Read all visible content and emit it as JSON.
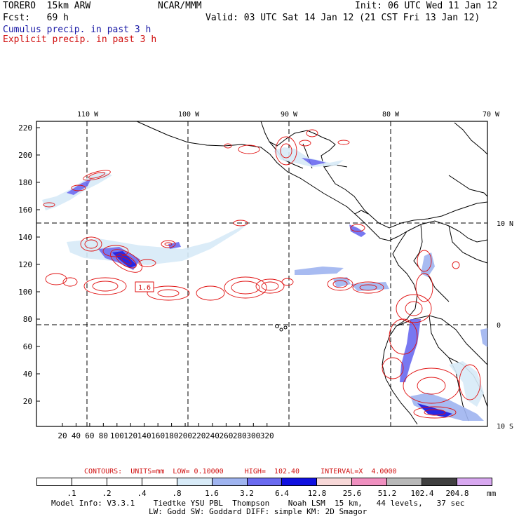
{
  "header": {
    "model": "TORERO  15km ARW",
    "institution": "NCAR/MMM",
    "init": "Init: 06 UTC Wed 11 Jan 12",
    "fcst": "Fcst:   69 h",
    "valid": "Valid: 03 UTC Sat 14 Jan 12 (21 CST Fri 13 Jan 12)",
    "field1": "Cumulus precip. in past 3 h",
    "field2": "Explicit precip. in past 3 h"
  },
  "axes": {
    "lon_labels": [
      "110 W",
      "100 W",
      "90 W",
      "80 W",
      "70 W"
    ],
    "lat_labels": [
      "10 N",
      "0",
      "10 S"
    ],
    "y_ticks": [
      "220",
      "200",
      "180",
      "160",
      "140",
      "120",
      "100",
      "80",
      "60",
      "40",
      "20"
    ],
    "x_ticks": [
      "20",
      "40",
      "60",
      "80",
      "100",
      "120",
      "140",
      "160",
      "180",
      "200",
      "220",
      "240",
      "260",
      "280",
      "300",
      "320"
    ]
  },
  "contour_info": {
    "text": "CONTOURS:  UNITS=mm  LOW= 0.10000     HIGH=  102.40     INTERVAL=X  4.0000"
  },
  "legend": {
    "levels": [
      ".1",
      ".2",
      ".4",
      ".8",
      "1.6",
      "3.2",
      "6.4",
      "12.8",
      "25.6",
      "51.2",
      "102.4",
      "204.8"
    ],
    "units": "mm",
    "colors": [
      "#ffffff",
      "#ffffff",
      "#ffffff",
      "#ffffff",
      "#d8ebf8",
      "#9fb4f0",
      "#6a6af0",
      "#1010e0",
      "#f8d8d8",
      "#f090c0",
      "#b8b8b8",
      "#404040",
      "#d8a8f0"
    ]
  },
  "map": {
    "contour_label": "1.6"
  },
  "footer": {
    "line1": "Model Info: V3.3.1    Tiedtke YSU PBL  Thompson    Noah LSM  15 km,   44 levels,   37 sec",
    "line2": "LW: Godd SW: Goddard DIFF: simple KM: 2D Smagor"
  },
  "colors": {
    "explicit": "#e01010",
    "cumulus": "#2a2ae0",
    "text_blue": "#1a1aa6",
    "text_red": "#d01010"
  }
}
